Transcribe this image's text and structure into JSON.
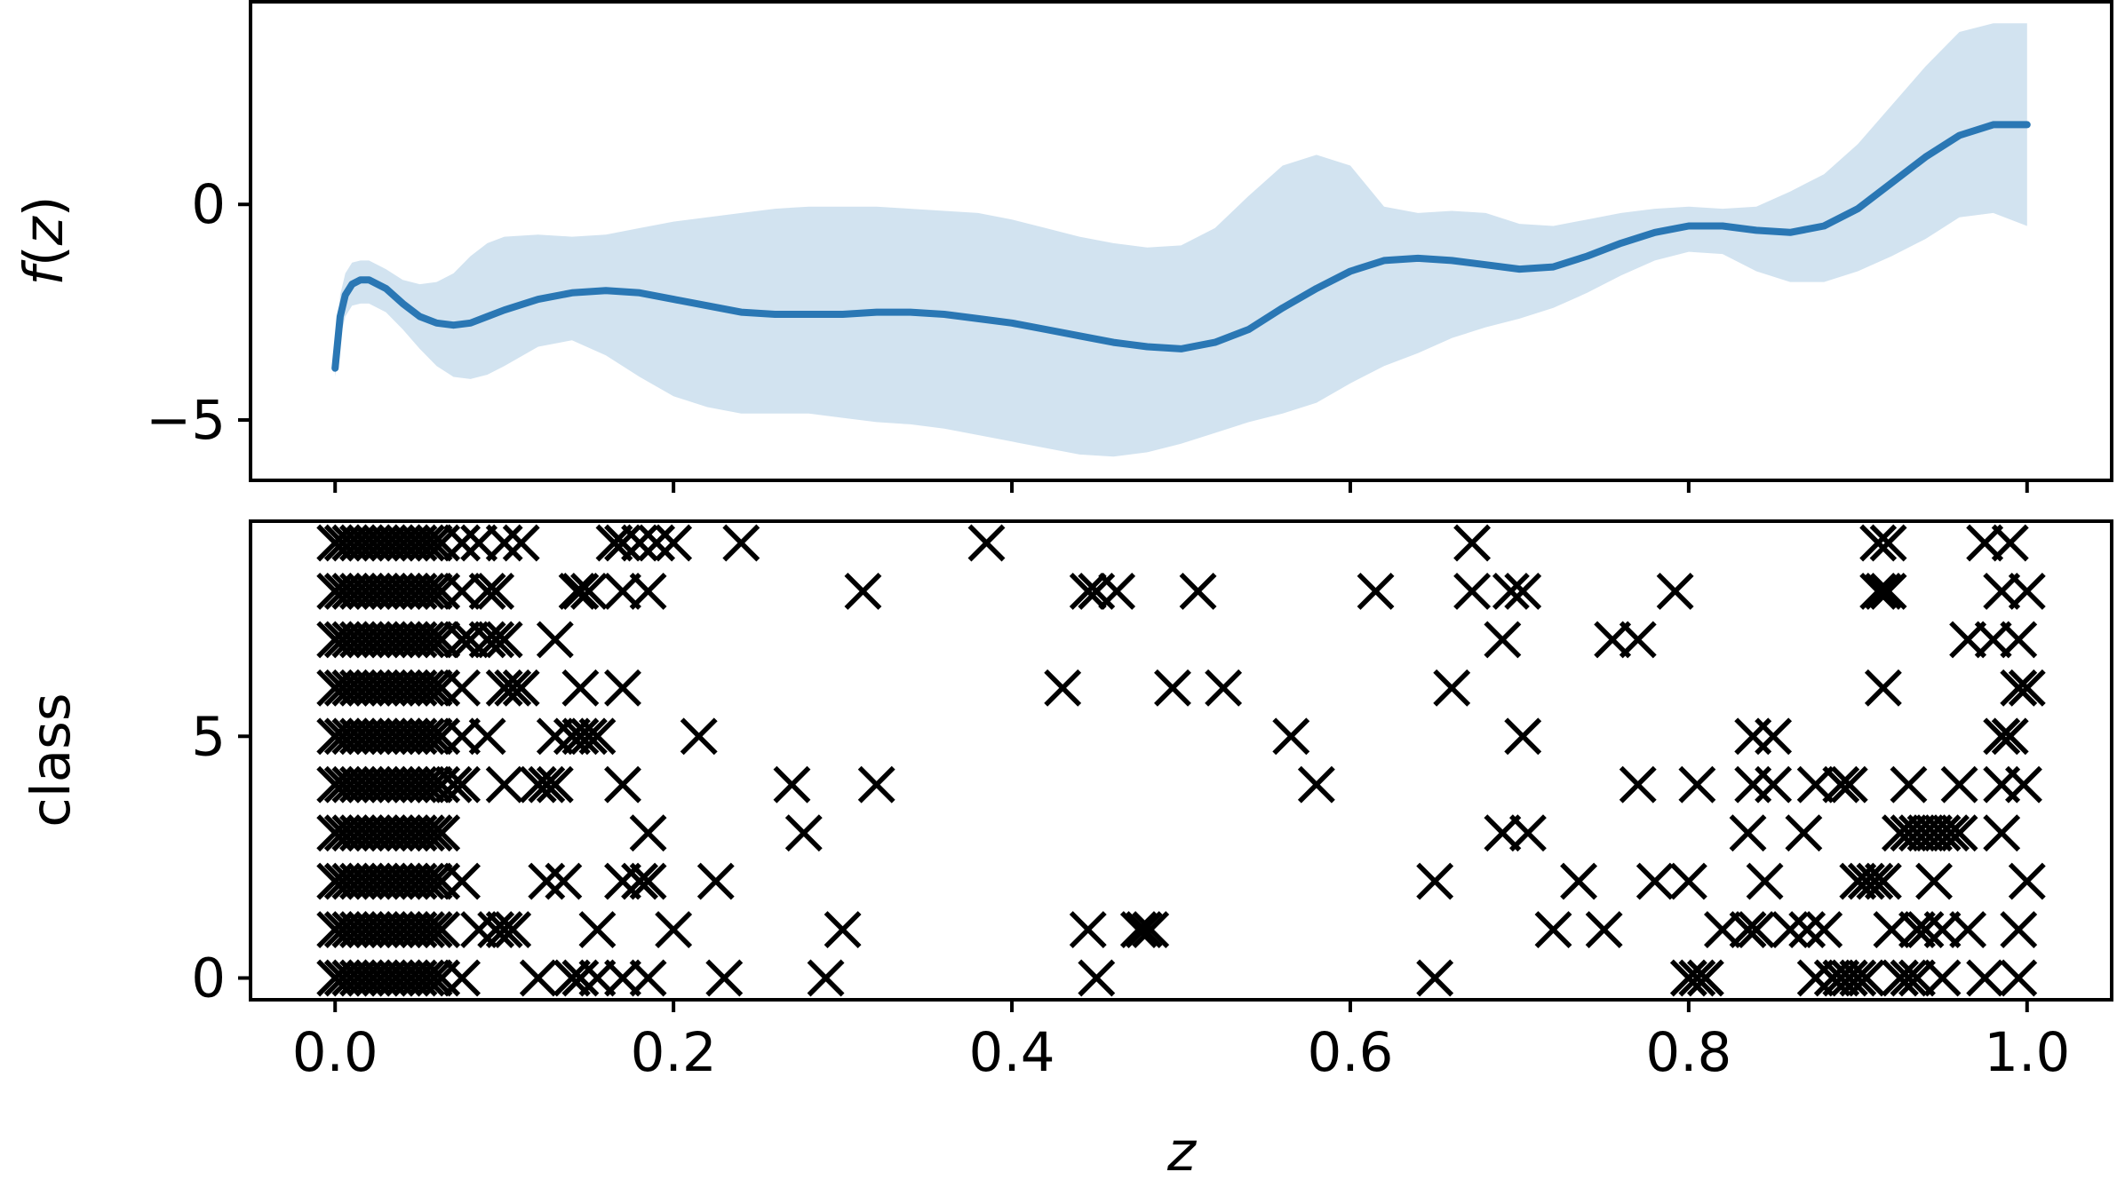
{
  "chart_data": [
    {
      "type": "line",
      "panel": "top",
      "ylabel_func": "f",
      "ylabel_arg": "z",
      "xlim": [
        -0.05,
        1.05
      ],
      "ylim": [
        -6.4,
        4.7
      ],
      "yticks": [
        -5,
        0
      ],
      "ytick_labels": [
        "−5",
        "0"
      ],
      "line_color": "#2a77b4",
      "band_color": "#d2e3f0",
      "series": [
        {
          "type": "line",
          "x": [
            0.0,
            0.003,
            0.006,
            0.01,
            0.015,
            0.02,
            0.03,
            0.04,
            0.05,
            0.06,
            0.07,
            0.08,
            0.09,
            0.1,
            0.12,
            0.14,
            0.16,
            0.18,
            0.2,
            0.22,
            0.24,
            0.26,
            0.28,
            0.3,
            0.32,
            0.34,
            0.36,
            0.38,
            0.4,
            0.42,
            0.44,
            0.46,
            0.48,
            0.5,
            0.52,
            0.54,
            0.56,
            0.58,
            0.6,
            0.62,
            0.64,
            0.66,
            0.68,
            0.7,
            0.72,
            0.74,
            0.76,
            0.78,
            0.8,
            0.82,
            0.84,
            0.86,
            0.88,
            0.9,
            0.92,
            0.94,
            0.96,
            0.98,
            1.0
          ],
          "y": [
            -3.8,
            -2.6,
            -2.1,
            -1.85,
            -1.75,
            -1.75,
            -1.95,
            -2.3,
            -2.6,
            -2.75,
            -2.8,
            -2.75,
            -2.6,
            -2.45,
            -2.2,
            -2.05,
            -2.0,
            -2.05,
            -2.2,
            -2.35,
            -2.5,
            -2.55,
            -2.55,
            -2.55,
            -2.5,
            -2.5,
            -2.55,
            -2.65,
            -2.75,
            -2.9,
            -3.05,
            -3.2,
            -3.3,
            -3.35,
            -3.2,
            -2.9,
            -2.4,
            -1.95,
            -1.55,
            -1.3,
            -1.25,
            -1.3,
            -1.4,
            -1.5,
            -1.45,
            -1.2,
            -0.9,
            -0.65,
            -0.5,
            -0.5,
            -0.6,
            -0.65,
            -0.5,
            -0.1,
            0.5,
            1.1,
            1.6,
            1.85,
            1.85
          ]
        },
        {
          "type": "band",
          "x": [
            0.0,
            0.003,
            0.006,
            0.01,
            0.015,
            0.02,
            0.03,
            0.04,
            0.05,
            0.06,
            0.07,
            0.08,
            0.09,
            0.1,
            0.12,
            0.14,
            0.16,
            0.18,
            0.2,
            0.22,
            0.24,
            0.26,
            0.28,
            0.3,
            0.32,
            0.34,
            0.36,
            0.38,
            0.4,
            0.42,
            0.44,
            0.46,
            0.48,
            0.5,
            0.52,
            0.54,
            0.56,
            0.58,
            0.6,
            0.62,
            0.64,
            0.66,
            0.68,
            0.7,
            0.72,
            0.74,
            0.76,
            0.78,
            0.8,
            0.82,
            0.84,
            0.86,
            0.88,
            0.9,
            0.92,
            0.94,
            0.96,
            0.98,
            1.0
          ],
          "upper": [
            -3.5,
            -2.1,
            -1.6,
            -1.35,
            -1.3,
            -1.3,
            -1.5,
            -1.75,
            -1.85,
            -1.8,
            -1.6,
            -1.2,
            -0.9,
            -0.75,
            -0.7,
            -0.75,
            -0.7,
            -0.55,
            -0.4,
            -0.3,
            -0.2,
            -0.1,
            -0.05,
            -0.05,
            -0.05,
            -0.1,
            -0.15,
            -0.2,
            -0.35,
            -0.55,
            -0.75,
            -0.9,
            -1.0,
            -0.95,
            -0.55,
            0.2,
            0.9,
            1.15,
            0.9,
            -0.05,
            -0.2,
            -0.15,
            -0.2,
            -0.45,
            -0.5,
            -0.35,
            -0.2,
            -0.1,
            -0.05,
            -0.1,
            -0.05,
            0.3,
            0.7,
            1.4,
            2.3,
            3.2,
            4.0,
            4.2,
            4.2
          ],
          "lower": [
            -4.0,
            -3.1,
            -2.6,
            -2.35,
            -2.3,
            -2.3,
            -2.5,
            -2.9,
            -3.35,
            -3.75,
            -4.0,
            -4.05,
            -3.95,
            -3.75,
            -3.3,
            -3.15,
            -3.5,
            -4.0,
            -4.45,
            -4.7,
            -4.85,
            -4.85,
            -4.85,
            -4.95,
            -5.05,
            -5.1,
            -5.2,
            -5.35,
            -5.5,
            -5.65,
            -5.8,
            -5.85,
            -5.75,
            -5.55,
            -5.3,
            -5.05,
            -4.85,
            -4.6,
            -4.15,
            -3.75,
            -3.45,
            -3.1,
            -2.85,
            -2.65,
            -2.4,
            -2.05,
            -1.65,
            -1.3,
            -1.1,
            -1.15,
            -1.55,
            -1.8,
            -1.8,
            -1.55,
            -1.2,
            -0.8,
            -0.3,
            -0.2,
            -0.5
          ]
        }
      ]
    },
    {
      "type": "scatter",
      "panel": "bottom",
      "xlabel": "z",
      "ylabel": "class",
      "xlim": [
        -0.05,
        1.05
      ],
      "ylim": [
        -0.45,
        9.45
      ],
      "xticks": [
        0.0,
        0.2,
        0.4,
        0.6,
        0.8,
        1.0
      ],
      "xtick_labels": [
        "0.0",
        "0.2",
        "0.4",
        "0.6",
        "0.8",
        "1.0"
      ],
      "yticks": [
        0,
        5
      ],
      "ytick_labels": [
        "0",
        "5"
      ],
      "marker": "x",
      "marker_color": "#000000",
      "dense_region": {
        "x_from": 0.0,
        "x_to": 0.065,
        "classes": [
          0,
          1,
          2,
          3,
          4,
          5,
          6,
          7,
          8,
          9
        ]
      },
      "points": [
        [
          0.075,
          9
        ],
        [
          0.085,
          9
        ],
        [
          0.1,
          9
        ],
        [
          0.11,
          9
        ],
        [
          0.165,
          9
        ],
        [
          0.17,
          9
        ],
        [
          0.18,
          9
        ],
        [
          0.19,
          9
        ],
        [
          0.2,
          9
        ],
        [
          0.24,
          9
        ],
        [
          0.385,
          9
        ],
        [
          0.672,
          9
        ],
        [
          0.912,
          9
        ],
        [
          0.918,
          9
        ],
        [
          0.975,
          9
        ],
        [
          0.99,
          9
        ],
        [
          0.075,
          8
        ],
        [
          0.09,
          8
        ],
        [
          0.095,
          8
        ],
        [
          0.143,
          8
        ],
        [
          0.145,
          8
        ],
        [
          0.15,
          8
        ],
        [
          0.17,
          8
        ],
        [
          0.185,
          8
        ],
        [
          0.312,
          8
        ],
        [
          0.445,
          8
        ],
        [
          0.45,
          8
        ],
        [
          0.462,
          8
        ],
        [
          0.51,
          8
        ],
        [
          0.615,
          8
        ],
        [
          0.672,
          8
        ],
        [
          0.695,
          8
        ],
        [
          0.702,
          8
        ],
        [
          0.792,
          8
        ],
        [
          0.912,
          8
        ],
        [
          0.915,
          8
        ],
        [
          0.918,
          8
        ],
        [
          0.985,
          8
        ],
        [
          1.0,
          8
        ],
        [
          0.075,
          7
        ],
        [
          0.08,
          7
        ],
        [
          0.09,
          7
        ],
        [
          0.095,
          7
        ],
        [
          0.1,
          7
        ],
        [
          0.13,
          7
        ],
        [
          0.69,
          7
        ],
        [
          0.755,
          7
        ],
        [
          0.77,
          7
        ],
        [
          0.965,
          7
        ],
        [
          0.98,
          7
        ],
        [
          0.995,
          7
        ],
        [
          0.075,
          6
        ],
        [
          0.1,
          6
        ],
        [
          0.105,
          6
        ],
        [
          0.11,
          6
        ],
        [
          0.145,
          6
        ],
        [
          0.17,
          6
        ],
        [
          0.43,
          6
        ],
        [
          0.495,
          6
        ],
        [
          0.525,
          6
        ],
        [
          0.66,
          6
        ],
        [
          0.915,
          6
        ],
        [
          0.995,
          6
        ],
        [
          1.0,
          6
        ],
        [
          0.075,
          5
        ],
        [
          0.09,
          5
        ],
        [
          0.13,
          5
        ],
        [
          0.14,
          5
        ],
        [
          0.145,
          5
        ],
        [
          0.15,
          5
        ],
        [
          0.155,
          5
        ],
        [
          0.215,
          5
        ],
        [
          0.565,
          5
        ],
        [
          0.702,
          5
        ],
        [
          0.838,
          5
        ],
        [
          0.85,
          5
        ],
        [
          0.985,
          5
        ],
        [
          0.99,
          5
        ],
        [
          0.07,
          4
        ],
        [
          0.075,
          4
        ],
        [
          0.1,
          4
        ],
        [
          0.12,
          4
        ],
        [
          0.125,
          4
        ],
        [
          0.13,
          4
        ],
        [
          0.17,
          4
        ],
        [
          0.27,
          4
        ],
        [
          0.32,
          4
        ],
        [
          0.58,
          4
        ],
        [
          0.77,
          4
        ],
        [
          0.805,
          4
        ],
        [
          0.838,
          4
        ],
        [
          0.85,
          4
        ],
        [
          0.875,
          4
        ],
        [
          0.89,
          4
        ],
        [
          0.895,
          4
        ],
        [
          0.93,
          4
        ],
        [
          0.96,
          4
        ],
        [
          0.985,
          4
        ],
        [
          0.998,
          4
        ],
        [
          0.185,
          3
        ],
        [
          0.277,
          3
        ],
        [
          0.69,
          3
        ],
        [
          0.705,
          3
        ],
        [
          0.835,
          3
        ],
        [
          0.868,
          3
        ],
        [
          0.925,
          3
        ],
        [
          0.93,
          3
        ],
        [
          0.935,
          3
        ],
        [
          0.94,
          3
        ],
        [
          0.945,
          3
        ],
        [
          0.95,
          3
        ],
        [
          0.955,
          3
        ],
        [
          0.96,
          3
        ],
        [
          0.985,
          3
        ],
        [
          0.075,
          2
        ],
        [
          0.125,
          2
        ],
        [
          0.135,
          2
        ],
        [
          0.17,
          2
        ],
        [
          0.18,
          2
        ],
        [
          0.185,
          2
        ],
        [
          0.225,
          2
        ],
        [
          0.65,
          2
        ],
        [
          0.735,
          2
        ],
        [
          0.78,
          2
        ],
        [
          0.8,
          2
        ],
        [
          0.845,
          2
        ],
        [
          0.9,
          2
        ],
        [
          0.905,
          2
        ],
        [
          0.91,
          2
        ],
        [
          0.915,
          2
        ],
        [
          0.945,
          2
        ],
        [
          1.0,
          2
        ],
        [
          0.085,
          1
        ],
        [
          0.095,
          1
        ],
        [
          0.1,
          1
        ],
        [
          0.105,
          1
        ],
        [
          0.155,
          1
        ],
        [
          0.2,
          1
        ],
        [
          0.3,
          1
        ],
        [
          0.445,
          1
        ],
        [
          0.475,
          1
        ],
        [
          0.478,
          1
        ],
        [
          0.482,
          1
        ],
        [
          0.72,
          1
        ],
        [
          0.75,
          1
        ],
        [
          0.82,
          1
        ],
        [
          0.835,
          1
        ],
        [
          0.84,
          1
        ],
        [
          0.86,
          1
        ],
        [
          0.87,
          1
        ],
        [
          0.88,
          1
        ],
        [
          0.92,
          1
        ],
        [
          0.935,
          1
        ],
        [
          0.94,
          1
        ],
        [
          0.95,
          1
        ],
        [
          0.965,
          1
        ],
        [
          0.995,
          1
        ],
        [
          0.075,
          0
        ],
        [
          0.12,
          0
        ],
        [
          0.14,
          0
        ],
        [
          0.145,
          0
        ],
        [
          0.155,
          0
        ],
        [
          0.17,
          0
        ],
        [
          0.185,
          0
        ],
        [
          0.23,
          0
        ],
        [
          0.29,
          0
        ],
        [
          0.45,
          0
        ],
        [
          0.65,
          0
        ],
        [
          0.8,
          0
        ],
        [
          0.805,
          0
        ],
        [
          0.81,
          0
        ],
        [
          0.875,
          0
        ],
        [
          0.885,
          0
        ],
        [
          0.89,
          0
        ],
        [
          0.895,
          0
        ],
        [
          0.9,
          0
        ],
        [
          0.905,
          0
        ],
        [
          0.925,
          0
        ],
        [
          0.93,
          0
        ],
        [
          0.935,
          0
        ],
        [
          0.95,
          0
        ],
        [
          0.975,
          0
        ],
        [
          0.995,
          0
        ]
      ]
    }
  ]
}
